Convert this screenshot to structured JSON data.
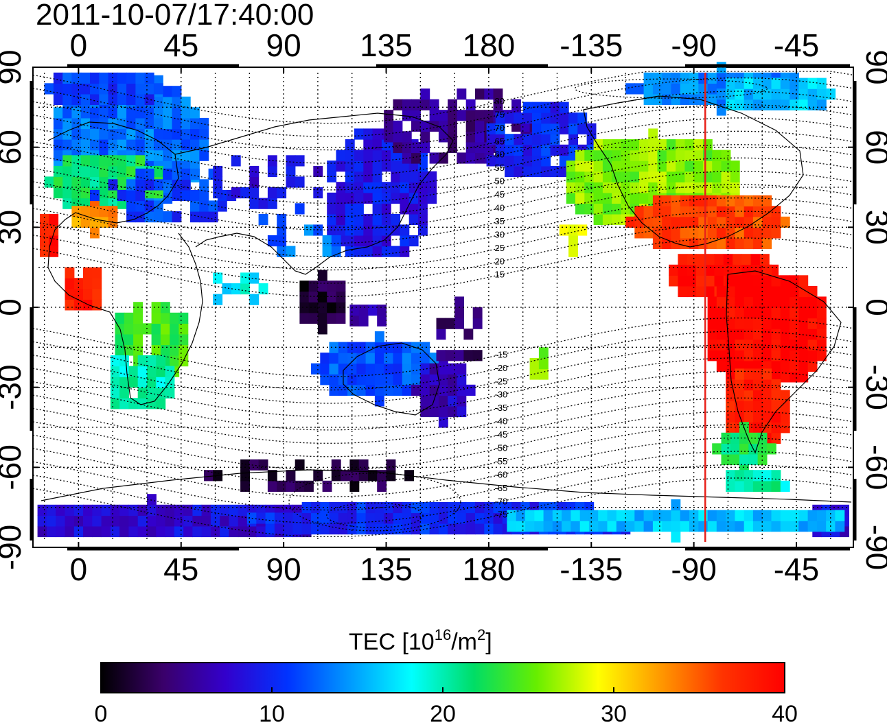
{
  "title": "2011-10-07/17:40:00",
  "lon_ticks": [
    "0",
    "45",
    "90",
    "135",
    "180",
    "-135",
    "-90",
    "-45"
  ],
  "lat_ticks": [
    "90",
    "60",
    "30",
    "0",
    "-30",
    "-60",
    "-90"
  ],
  "colorbar": {
    "label_main": "TEC  [10",
    "label_sup": "16",
    "label_mid": "/m",
    "label_sup2": "2",
    "label_end": "]",
    "min": 0,
    "max": 40,
    "ticks": [
      "0",
      "10",
      "20",
      "30",
      "40"
    ],
    "colors": [
      "#000000",
      "#3a006a",
      "#3300cc",
      "#0033ff",
      "#0099ff",
      "#00ffff",
      "#00dd66",
      "#66ee00",
      "#ffff00",
      "#ff9900",
      "#ff3300",
      "#ff0000"
    ]
  },
  "magnetic_latitude_labels": [
    "80",
    "75",
    "70",
    "65",
    "60",
    "55",
    "50",
    "45",
    "40",
    "35",
    "30",
    "25",
    "20",
    "15",
    "-15",
    "-20",
    "-25",
    "-30",
    "-35",
    "-40",
    "-45",
    "-50",
    "-55",
    "-60",
    "-65",
    "-70",
    "-75"
  ],
  "terminator_longitude": -85,
  "map": {
    "projection": "cylindrical",
    "lon_range": [
      -20,
      340
    ],
    "lat_range": [
      -90,
      90
    ]
  }
}
